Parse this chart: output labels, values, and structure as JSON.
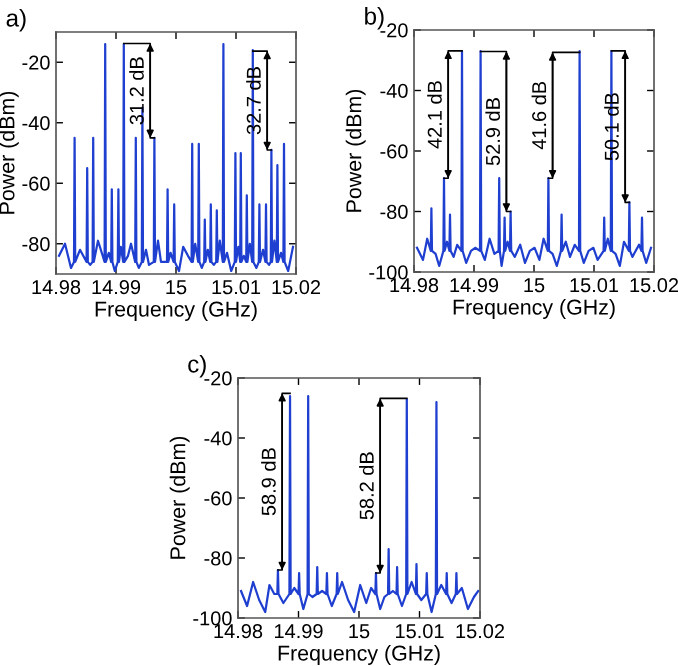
{
  "chart_data": [
    {
      "type": "line",
      "title": "a)",
      "xlabel": "Frequency (GHz)",
      "ylabel": "Power (dBm)",
      "xlim": [
        14.98,
        15.02
      ],
      "ylim": [
        -90,
        -10
      ],
      "xticks": [
        14.98,
        14.99,
        15,
        15.01,
        15.02
      ],
      "yticks": [
        -20,
        -40,
        -60,
        -80
      ],
      "grid": false,
      "annotations": [
        {
          "text": "31.2 dB",
          "x": 14.9964,
          "y": -45
        },
        {
          "text": "32.7 dB",
          "x": 15.0159,
          "y": -49
        }
      ],
      "series": [
        {
          "color": "#1f3fd0",
          "x": [
            14.9805,
            14.9815,
            14.9825,
            14.983,
            14.9831,
            14.9832,
            14.984,
            14.9851,
            14.9852,
            14.9853,
            14.9857,
            14.9861,
            14.9862,
            14.9863,
            14.987,
            14.9881,
            14.9882,
            14.9883,
            14.9888,
            14.9892,
            14.9893,
            14.9894,
            14.9898,
            14.9903,
            14.9904,
            14.9905,
            14.9908,
            14.9912,
            14.9913,
            14.9914,
            14.992,
            14.9925,
            14.9932,
            14.9933,
            14.9934,
            14.9938,
            14.9943,
            14.9944,
            14.9945,
            14.995,
            14.9955,
            14.9963,
            14.9964,
            14.9965,
            14.997,
            14.9975,
            14.9985,
            14.9986,
            14.9987,
            14.9991,
            14.9996,
            14.9997,
            14.9998,
            15.0005,
            15.0012,
            15.002,
            15.0026,
            15.0027,
            15.0028,
            15.0032,
            15.0037,
            15.0038,
            15.0039,
            15.0043,
            15.0047,
            15.0048,
            15.0049,
            15.0053,
            15.0057,
            15.0058,
            15.0059,
            15.0063,
            15.0067,
            15.0068,
            15.0069,
            15.0073,
            15.0078,
            15.0079,
            15.008,
            15.0085,
            15.0092,
            15.0098,
            15.0099,
            15.01,
            15.0104,
            15.0107,
            15.0108,
            15.0109,
            15.0113,
            15.0117,
            15.0118,
            15.0119,
            15.0123,
            15.0127,
            15.0128,
            15.0129,
            15.0134,
            15.0138,
            15.0139,
            15.014,
            15.0145,
            15.0149,
            15.015,
            15.0151,
            15.0155,
            15.0158,
            15.0159,
            15.016,
            15.0164,
            15.0168,
            15.0169,
            15.017,
            15.0175,
            15.0179,
            15.018,
            15.0181,
            15.0187,
            15.0195
          ],
          "values": [
            -84,
            -80,
            -88,
            -86,
            -45,
            -86,
            -82,
            -86,
            -55,
            -86,
            -87,
            -86,
            -45,
            -86,
            -79,
            -86,
            -14,
            -86,
            -83,
            -86,
            -62,
            -86,
            -89,
            -86,
            -62,
            -86,
            -81,
            -86,
            -14,
            -86,
            -84,
            -80,
            -86,
            -45,
            -86,
            -88,
            -86,
            -35,
            -86,
            -82,
            -87,
            -86,
            -45,
            -86,
            -79,
            -86,
            -86,
            -62,
            -86,
            -83,
            -86,
            -67,
            -86,
            -89,
            -81,
            -84,
            -86,
            -47,
            -86,
            -80,
            -86,
            -47,
            -86,
            -88,
            -86,
            -72,
            -86,
            -82,
            -86,
            -67,
            -86,
            -87,
            -86,
            -69,
            -86,
            -79,
            -86,
            -14,
            -86,
            -83,
            -89,
            -86,
            -50,
            -86,
            -81,
            -86,
            -50,
            -86,
            -84,
            -86,
            -64,
            -86,
            -80,
            -86,
            -16,
            -86,
            -88,
            -86,
            -67,
            -86,
            -82,
            -86,
            -67,
            -86,
            -87,
            -86,
            -49,
            -86,
            -79,
            -86,
            -54,
            -86,
            -83,
            -86,
            -47,
            -86,
            -89,
            -81
          ]
        }
      ]
    },
    {
      "type": "line",
      "title": "b)",
      "xlabel": "Frequency (GHz)",
      "ylabel": "Power (dBm)",
      "xlim": [
        14.98,
        15.02
      ],
      "ylim": [
        -100,
        -20
      ],
      "xticks": [
        14.98,
        14.99,
        15,
        15.01,
        15.02
      ],
      "yticks": [
        -20,
        -40,
        -60,
        -80,
        -100
      ],
      "grid": false,
      "annotations": [
        {
          "text": "42.1 dB",
          "x": 14.985,
          "y": -69
        },
        {
          "text": "52.9 dB",
          "x": 14.9961,
          "y": -80
        },
        {
          "text": "41.6 dB",
          "x": 15.0024,
          "y": -69
        },
        {
          "text": "50.1 dB",
          "x": 15.0159,
          "y": -77
        }
      ],
      "series": [
        {
          "color": "#1f3fd0",
          "x": [
            14.9805,
            14.9815,
            14.9822,
            14.9828,
            14.9829,
            14.983,
            14.9836,
            14.9842,
            14.9849,
            14.985,
            14.9851,
            14.9855,
            14.9859,
            14.986,
            14.9861,
            14.9866,
            14.9872,
            14.9879,
            14.988,
            14.9881,
            14.9887,
            14.9895,
            14.9902,
            14.991,
            14.9911,
            14.9912,
            14.9918,
            14.9926,
            14.9934,
            14.9941,
            14.9942,
            14.9943,
            14.9946,
            14.995,
            14.9951,
            14.9952,
            14.9956,
            14.996,
            14.9961,
            14.9962,
            14.9968,
            14.9977,
            14.9985,
            14.9993,
            15.0001,
            15.0009,
            15.0016,
            15.0023,
            15.0024,
            15.0025,
            15.0031,
            15.0038,
            15.0045,
            15.0046,
            15.0047,
            15.0053,
            15.006,
            15.0068,
            15.0075,
            15.0076,
            15.0077,
            15.0083,
            15.0091,
            15.0099,
            15.0106,
            15.0116,
            15.0117,
            15.0118,
            15.0123,
            15.0128,
            15.0129,
            15.013,
            15.0136,
            15.0143,
            15.015,
            15.0158,
            15.0159,
            15.016,
            15.0164,
            15.0175,
            15.0179,
            15.018,
            15.0181,
            15.0187,
            15.0195
          ],
          "values": [
            -92,
            -96,
            -89,
            -93,
            -79,
            -93,
            -94,
            -98,
            -93,
            -69,
            -93,
            -90,
            -93,
            -81,
            -93,
            -95,
            -91,
            -93,
            -27,
            -93,
            -97,
            -93,
            -92,
            -93,
            -27,
            -93,
            -96,
            -89,
            -94,
            -93,
            -69,
            -93,
            -98,
            -93,
            -82,
            -93,
            -90,
            -93,
            -80,
            -93,
            -95,
            -91,
            -97,
            -93,
            -92,
            -96,
            -89,
            -93,
            -69,
            -93,
            -94,
            -98,
            -93,
            -81,
            -93,
            -90,
            -95,
            -91,
            -93,
            -27,
            -93,
            -97,
            -93,
            -92,
            -96,
            -93,
            -82,
            -93,
            -89,
            -93,
            -27,
            -93,
            -94,
            -98,
            -90,
            -93,
            -77,
            -93,
            -95,
            -91,
            -93,
            -82,
            -93,
            -97,
            -92
          ]
        }
      ]
    },
    {
      "type": "line",
      "title": "c)",
      "xlabel": "Frequency (GHz)",
      "ylabel": "Power (dBm)",
      "xlim": [
        14.98,
        15.02
      ],
      "ylim": [
        -100,
        -20
      ],
      "xticks": [
        14.98,
        14.99,
        15,
        15.01,
        15.02
      ],
      "yticks": [
        -20,
        -40,
        -60,
        -80,
        -100
      ],
      "grid": false,
      "annotations": [
        {
          "text": "58.9 dB",
          "x": 14.9866,
          "y": -84
        },
        {
          "text": "58.2 dB",
          "x": 15.0028,
          "y": -85
        }
      ],
      "series": [
        {
          "color": "#1f3fd0",
          "x": [
            14.9805,
            14.9815,
            14.9825,
            14.9835,
            14.9845,
            14.9852,
            14.986,
            14.9865,
            14.9866,
            14.9867,
            14.9875,
            14.9885,
            14.9886,
            14.9887,
            14.9893,
            14.99,
            14.9901,
            14.9902,
            14.9908,
            14.9915,
            14.9916,
            14.9917,
            14.9923,
            14.993,
            14.9931,
            14.9932,
            14.9939,
            14.9946,
            14.9947,
            14.9948,
            14.9955,
            14.9963,
            14.9964,
            14.9965,
            14.9972,
            14.9982,
            14.9992,
            15.0002,
            15.0012,
            15.002,
            15.0027,
            15.0028,
            15.0029,
            15.0035,
            15.0042,
            15.0048,
            15.0049,
            15.005,
            15.0056,
            15.0062,
            15.0063,
            15.0064,
            15.0071,
            15.0078,
            15.0079,
            15.008,
            15.0087,
            15.0094,
            15.0095,
            15.0096,
            15.0103,
            15.0111,
            15.0112,
            15.0113,
            15.012,
            15.0127,
            15.0128,
            15.0129,
            15.0136,
            15.0144,
            15.0145,
            15.0146,
            15.0153,
            15.016,
            15.0161,
            15.0162,
            15.017,
            15.018,
            15.019,
            15.0197
          ],
          "values": [
            -91,
            -96,
            -88,
            -94,
            -98,
            -89,
            -92,
            -92,
            -84,
            -92,
            -95,
            -92,
            -26,
            -92,
            -90,
            -92,
            -85,
            -92,
            -97,
            -92,
            -26,
            -92,
            -93,
            -92,
            -83,
            -92,
            -91,
            -92,
            -85,
            -92,
            -96,
            -92,
            -85,
            -92,
            -88,
            -94,
            -98,
            -89,
            -95,
            -90,
            -92,
            -85,
            -92,
            -97,
            -93,
            -92,
            -77,
            -92,
            -91,
            -92,
            -83,
            -92,
            -96,
            -92,
            -27,
            -92,
            -88,
            -92,
            -82,
            -92,
            -94,
            -92,
            -85,
            -92,
            -98,
            -92,
            -28,
            -92,
            -89,
            -92,
            -85,
            -92,
            -95,
            -92,
            -85,
            -92,
            -90,
            -97,
            -93,
            -91
          ]
        }
      ]
    }
  ]
}
